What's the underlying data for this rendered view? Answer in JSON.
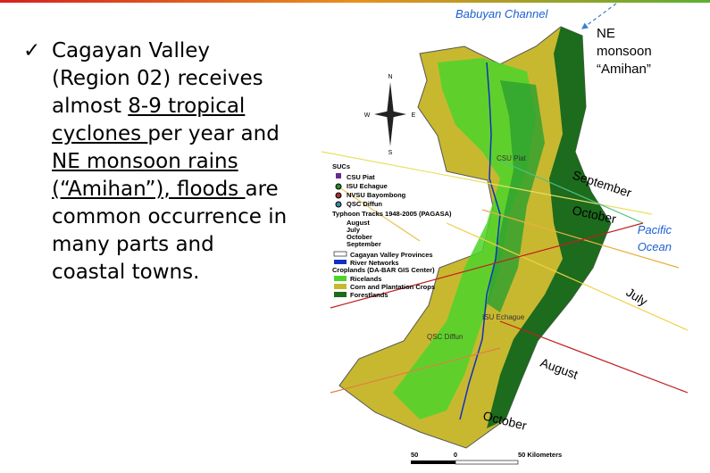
{
  "bullet": {
    "segments": [
      {
        "text": "Cagayan Valley (Region 02) receives almost ",
        "underline": false
      },
      {
        "text": "8-9 tropical cyclones ",
        "underline": true
      },
      {
        "text": "per year and ",
        "underline": false
      },
      {
        "text": "NE monsoon rains (“Amihan”), floods ",
        "underline": true
      },
      {
        "text": "are common occurrence in many parts and coastal towns.",
        "underline": false
      }
    ]
  },
  "map": {
    "sea_north": "Babuyan Channel",
    "monsoon": [
      "NE",
      "monsoon",
      "“Amihan”"
    ],
    "ocean": [
      "Pacific",
      "Ocean"
    ],
    "compass": {
      "n": "N",
      "w": "W",
      "e": "E",
      "s": "S"
    },
    "track_labels": [
      "September",
      "October",
      "July",
      "August",
      "October"
    ],
    "places": [
      "CSU Piat",
      "ISU Echague",
      "QSC Diffun"
    ]
  },
  "legend": {
    "sucs_title": "SUCs",
    "sucs": [
      "CSU Piat",
      "ISU Echague",
      "NVSU Bayombong",
      "QSC Diffun"
    ],
    "tracks_title": "Typhoon Tracks 1948-2005 (PAGASA)",
    "tracks": [
      "August",
      "July",
      "October",
      "September"
    ],
    "boundaries": [
      "Cagayan Valley Provinces",
      "River Networks"
    ],
    "crops_title": "Croplands (DA-BAR GIS Center)",
    "crops": [
      "Ricelands",
      "Corn and Plantation Crops",
      "Forestlands"
    ]
  },
  "scale": {
    "labels": [
      "50",
      "0",
      "50 Kilometers"
    ]
  }
}
